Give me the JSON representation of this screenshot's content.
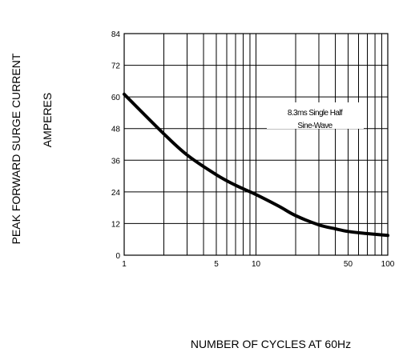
{
  "chart_data": {
    "type": "line",
    "title": "",
    "xlabel": "NUMBER OF CYCLES AT 60Hz",
    "ylabel_lines": [
      "PEAK FORWARD SURGE CURRENT",
      "AMPERES"
    ],
    "x_scale": "log",
    "xlim": [
      1,
      100
    ],
    "ylim": [
      0,
      84
    ],
    "x_ticks": [
      {
        "value": 1,
        "label": "1"
      },
      {
        "value": 5,
        "label": "5"
      },
      {
        "value": 10,
        "label": "10"
      },
      {
        "value": 50,
        "label": "50"
      },
      {
        "value": 100,
        "label": "100"
      }
    ],
    "y_ticks": [
      {
        "value": 0,
        "label": "0"
      },
      {
        "value": 12,
        "label": "12"
      },
      {
        "value": 24,
        "label": "24"
      },
      {
        "value": 36,
        "label": "36"
      },
      {
        "value": 48,
        "label": "48"
      },
      {
        "value": 60,
        "label": "60"
      },
      {
        "value": 72,
        "label": "72"
      },
      {
        "value": 84,
        "label": "84"
      }
    ],
    "x_gridlines": [
      1,
      2,
      3,
      4,
      5,
      6,
      7,
      8,
      9,
      10,
      20,
      30,
      40,
      50,
      60,
      70,
      80,
      90,
      100
    ],
    "y_gridlines": [
      0,
      12,
      24,
      36,
      48,
      60,
      72,
      84
    ],
    "grid": true,
    "series": [
      {
        "x": [
          1,
          2,
          3,
          5,
          7,
          10,
          15,
          20,
          30,
          40,
          50,
          70,
          100
        ],
        "y": [
          61,
          46,
          38,
          30.5,
          26.5,
          23,
          18.5,
          15,
          11.5,
          10,
          9,
          8.2,
          7.5
        ]
      }
    ],
    "annotation": {
      "lines": [
        "8.3ms Single Half",
        "Sine-Wave"
      ]
    },
    "colors": {
      "line": "#000000",
      "grid": "#000000",
      "background": "#ffffff"
    }
  }
}
